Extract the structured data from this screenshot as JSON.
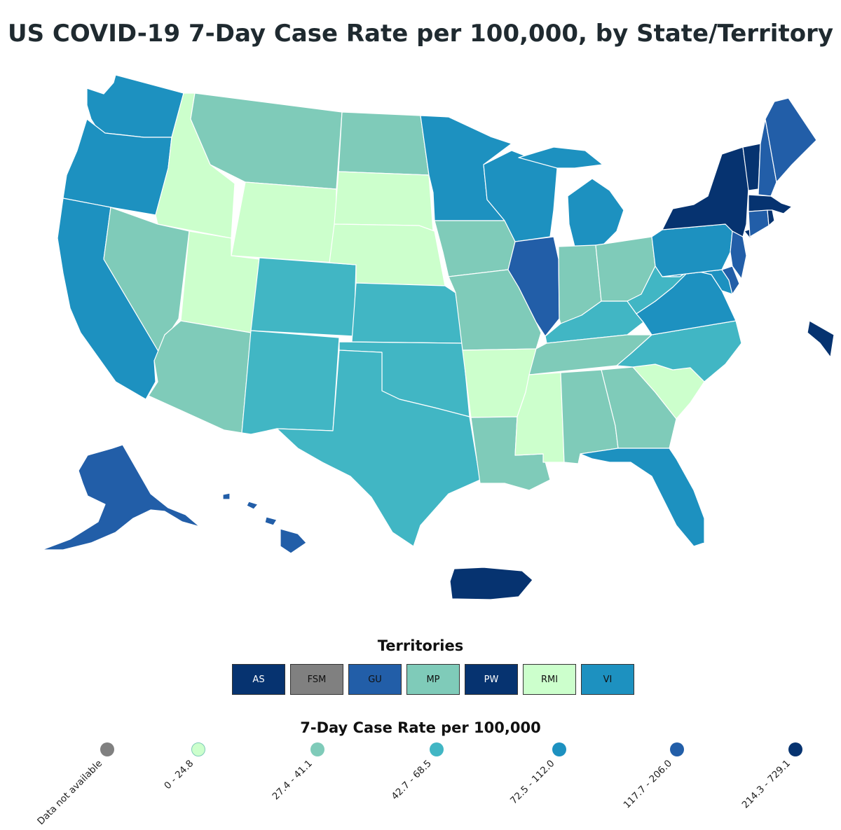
{
  "title": "US COVID-19 7-Day Case Rate per 100,000, by State/Territory",
  "colors": {
    "na": "#808080",
    "b1": "#ccffcc",
    "b2": "#7fcbb9",
    "b3": "#41b6c4",
    "b4": "#1d91c0",
    "b5": "#225ea8",
    "b6": "#063370"
  },
  "territories": {
    "title": "Territories",
    "items": [
      {
        "label": "AS",
        "color": "#063370",
        "text_color": "#ffffff"
      },
      {
        "label": "FSM",
        "color": "#808080",
        "text_color": "#111111"
      },
      {
        "label": "GU",
        "color": "#225ea8",
        "text_color": "#111111"
      },
      {
        "label": "MP",
        "color": "#7fcbb9",
        "text_color": "#111111"
      },
      {
        "label": "PW",
        "color": "#063370",
        "text_color": "#ffffff"
      },
      {
        "label": "RMI",
        "color": "#ccffcc",
        "text_color": "#111111"
      },
      {
        "label": "VI",
        "color": "#1d91c0",
        "text_color": "#111111"
      }
    ]
  },
  "legend": {
    "title": "7-Day Case Rate per 100,000",
    "items": [
      {
        "label": "Data not available",
        "color": "#808080"
      },
      {
        "label": "0 - 24.8",
        "color": "#ccffcc"
      },
      {
        "label": "27.4 - 41.1",
        "color": "#7fcbb9"
      },
      {
        "label": "42.7 - 68.5",
        "color": "#41b6c4"
      },
      {
        "label": "72.5 - 112.0",
        "color": "#1d91c0"
      },
      {
        "label": "117.7 - 206.0",
        "color": "#225ea8"
      },
      {
        "label": "214.3 - 729.1",
        "color": "#063370"
      }
    ]
  },
  "regions": [
    {
      "name": "WA",
      "bin": "b4"
    },
    {
      "name": "OR",
      "bin": "b4"
    },
    {
      "name": "CA",
      "bin": "b4"
    },
    {
      "name": "ID",
      "bin": "b1"
    },
    {
      "name": "NV",
      "bin": "b2"
    },
    {
      "name": "UT",
      "bin": "b1"
    },
    {
      "name": "AZ",
      "bin": "b2"
    },
    {
      "name": "MT",
      "bin": "b2"
    },
    {
      "name": "WY",
      "bin": "b1"
    },
    {
      "name": "CO",
      "bin": "b3"
    },
    {
      "name": "NM",
      "bin": "b3"
    },
    {
      "name": "ND",
      "bin": "b2"
    },
    {
      "name": "SD",
      "bin": "b1"
    },
    {
      "name": "NE",
      "bin": "b1"
    },
    {
      "name": "KS",
      "bin": "b3"
    },
    {
      "name": "OK",
      "bin": "b3"
    },
    {
      "name": "TX",
      "bin": "b3"
    },
    {
      "name": "MN",
      "bin": "b4"
    },
    {
      "name": "IA",
      "bin": "b2"
    },
    {
      "name": "MO",
      "bin": "b2"
    },
    {
      "name": "AR",
      "bin": "b1"
    },
    {
      "name": "LA",
      "bin": "b2"
    },
    {
      "name": "WI",
      "bin": "b4"
    },
    {
      "name": "IL",
      "bin": "b5"
    },
    {
      "name": "MI",
      "bin": "b4"
    },
    {
      "name": "IN",
      "bin": "b2"
    },
    {
      "name": "OH",
      "bin": "b2"
    },
    {
      "name": "KY",
      "bin": "b3"
    },
    {
      "name": "TN",
      "bin": "b2"
    },
    {
      "name": "MS",
      "bin": "b1"
    },
    {
      "name": "AL",
      "bin": "b2"
    },
    {
      "name": "GA",
      "bin": "b2"
    },
    {
      "name": "FL",
      "bin": "b4"
    },
    {
      "name": "SC",
      "bin": "b1"
    },
    {
      "name": "NC",
      "bin": "b3"
    },
    {
      "name": "VA",
      "bin": "b4"
    },
    {
      "name": "WV",
      "bin": "b3"
    },
    {
      "name": "MD",
      "bin": "b4"
    },
    {
      "name": "DE",
      "bin": "b5"
    },
    {
      "name": "PA",
      "bin": "b4"
    },
    {
      "name": "NJ",
      "bin": "b5"
    },
    {
      "name": "NY",
      "bin": "b6"
    },
    {
      "name": "CT",
      "bin": "b5"
    },
    {
      "name": "RI",
      "bin": "b6"
    },
    {
      "name": "MA",
      "bin": "b6"
    },
    {
      "name": "VT",
      "bin": "b6"
    },
    {
      "name": "NH",
      "bin": "b5"
    },
    {
      "name": "ME",
      "bin": "b5"
    },
    {
      "name": "AK",
      "bin": "b5"
    },
    {
      "name": "HI",
      "bin": "b5"
    },
    {
      "name": "PR",
      "bin": "b6"
    },
    {
      "name": "NYC",
      "bin": "b6"
    }
  ]
}
